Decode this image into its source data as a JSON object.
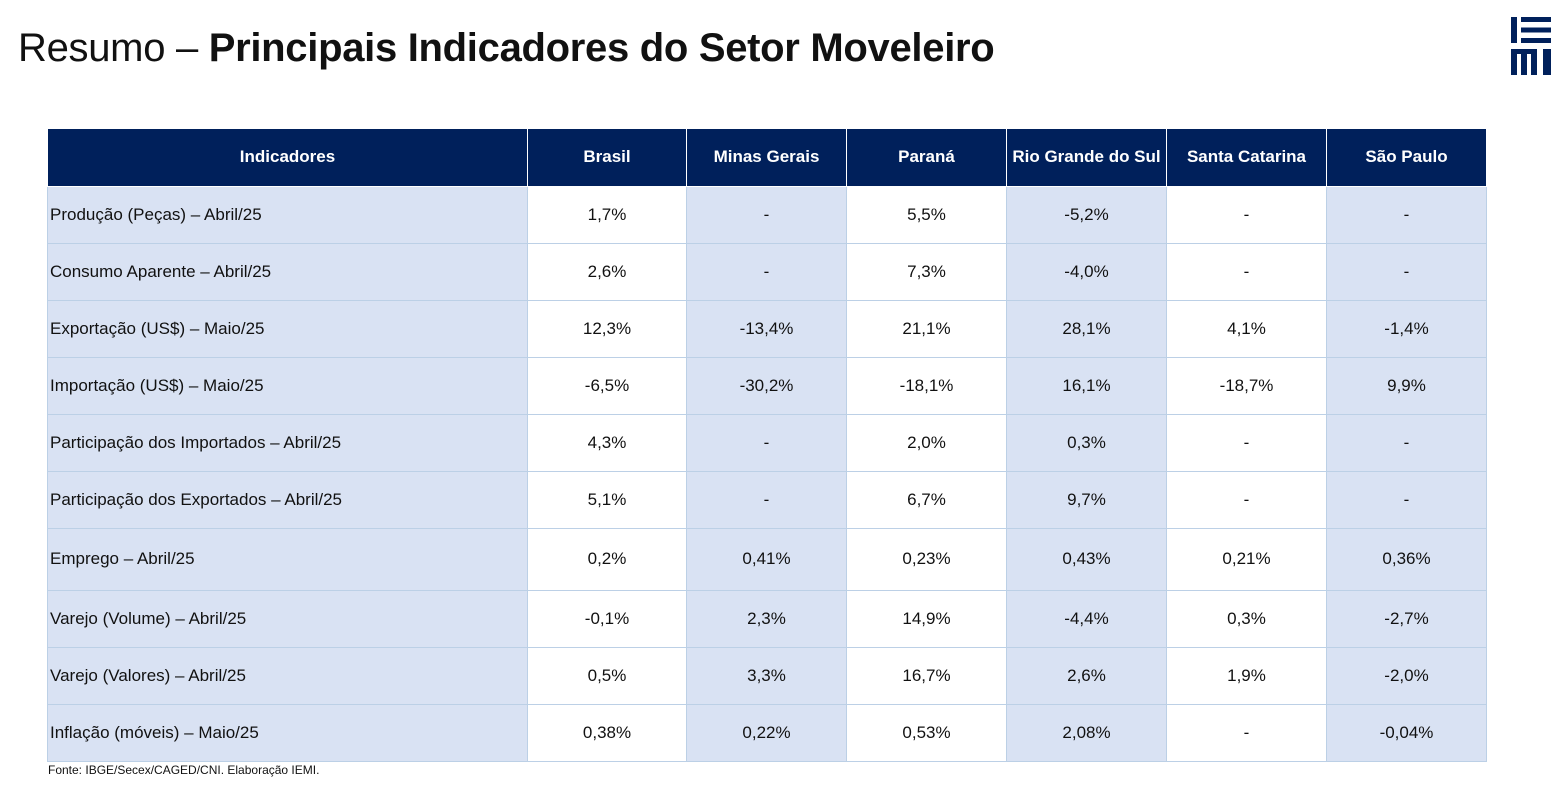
{
  "title": {
    "prefix": "Resumo – ",
    "main": "Principais Indicadores do Setor Moveleiro"
  },
  "logo": {
    "name": "IEMI-logo",
    "text": "IEMI",
    "color": "#00205b"
  },
  "colors": {
    "header_bg": "#00205b",
    "row_bg": "#d9e2f3",
    "border": "#bcd0e6"
  },
  "table": {
    "columns": [
      "Indicadores",
      "Brasil",
      "Minas Gerais",
      "Paraná",
      "Rio Grande do Sul",
      "Santa Catarina",
      "São Paulo"
    ],
    "rows": [
      {
        "label": "Produção (Peças) – Abril/25",
        "values": [
          "1,7%",
          "-",
          "5,5%",
          "-5,2%",
          "-",
          "-"
        ]
      },
      {
        "label": "Consumo Aparente – Abril/25",
        "values": [
          "2,6%",
          "-",
          "7,3%",
          "-4,0%",
          "-",
          "-"
        ]
      },
      {
        "label": "Exportação (US$) – Maio/25",
        "values": [
          "12,3%",
          "-13,4%",
          "21,1%",
          "28,1%",
          "4,1%",
          "-1,4%"
        ]
      },
      {
        "label": "Importação (US$) – Maio/25",
        "values": [
          "-6,5%",
          "-30,2%",
          "-18,1%",
          "16,1%",
          "-18,7%",
          "9,9%"
        ]
      },
      {
        "label": "Participação dos Importados – Abril/25",
        "values": [
          "4,3%",
          "-",
          "2,0%",
          "0,3%",
          "-",
          "-"
        ]
      },
      {
        "label": "Participação dos Exportados – Abril/25",
        "values": [
          "5,1%",
          "-",
          "6,7%",
          "9,7%",
          "-",
          "-"
        ]
      },
      {
        "label": "Emprego – Abril/25",
        "values": [
          "0,2%",
          "0,41%",
          "0,23%",
          "0,43%",
          "0,21%",
          "0,36%"
        ]
      },
      {
        "label": "Varejo (Volume) – Abril/25",
        "values": [
          "-0,1%",
          "2,3%",
          "14,9%",
          "-4,4%",
          "0,3%",
          "-2,7%"
        ]
      },
      {
        "label": "Varejo (Valores) – Abril/25",
        "values": [
          "0,5%",
          "3,3%",
          "16,7%",
          "2,6%",
          "1,9%",
          "-2,0%"
        ]
      },
      {
        "label": "Inflação (móveis)  – Maio/25",
        "values": [
          "0,38%",
          "0,22%",
          "0,53%",
          "2,08%",
          "-",
          "-0,04%"
        ]
      }
    ]
  },
  "source": "Fonte: IBGE/Secex/CAGED/CNI. Elaboração IEMI."
}
